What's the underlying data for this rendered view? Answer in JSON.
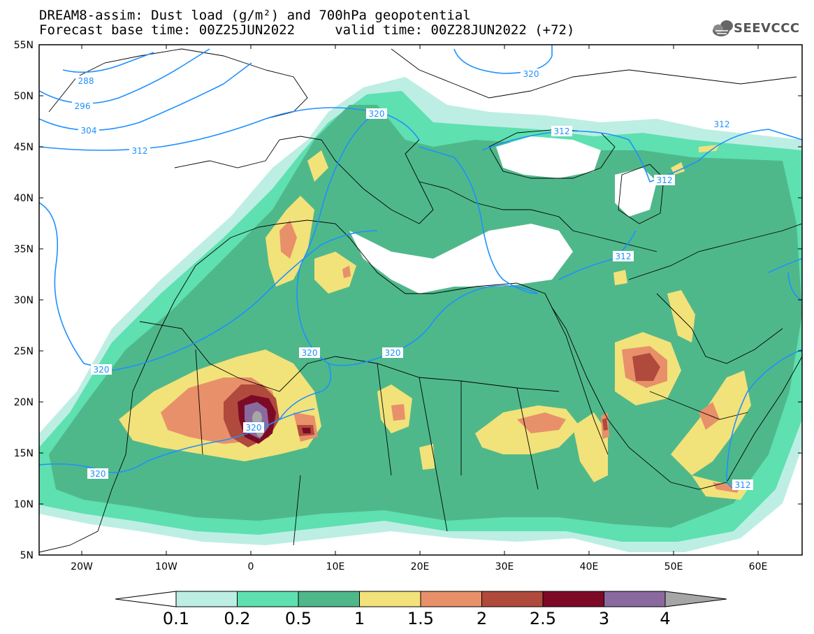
{
  "title": {
    "line1": "DREAM8-assim: Dust load (g/m²) and 700hPa geopotential",
    "line2": "Forecast base time: 00Z25JUN2022     valid time: 00Z28JUN2022 (+72)"
  },
  "logo": {
    "text": "SEEVCCC",
    "icon": "cloud-logo-icon"
  },
  "axes": {
    "lat_labels": [
      "55N",
      "50N",
      "45N",
      "40N",
      "35N",
      "30N",
      "25N",
      "20N",
      "15N",
      "10N",
      "5N"
    ],
    "lon_labels": [
      "20W",
      "10W",
      "0",
      "10E",
      "20E",
      "30E",
      "40E",
      "50E",
      "60E"
    ]
  },
  "isolines": [
    {
      "label": "288"
    },
    {
      "label": "296"
    },
    {
      "label": "304"
    },
    {
      "label": "312"
    },
    {
      "label": "320"
    },
    {
      "label": "320"
    },
    {
      "label": "312"
    },
    {
      "label": "312"
    },
    {
      "label": "312"
    },
    {
      "label": "320"
    },
    {
      "label": "320"
    },
    {
      "label": "320"
    },
    {
      "label": "320"
    },
    {
      "label": "312"
    },
    {
      "label": "320"
    },
    {
      "label": "312"
    }
  ],
  "colorbar": {
    "ticks": [
      "0.1",
      "0.2",
      "0.5",
      "1",
      "1.5",
      "2",
      "2.5",
      "3",
      "4"
    ],
    "colors": [
      "#bdeee4",
      "#5ee0b0",
      "#4fb88a",
      "#f2e27a",
      "#e8906a",
      "#b04a3c",
      "#7c0a26",
      "#8a6a9e",
      "#a6a6a6"
    ]
  },
  "colors": {
    "level_01": "#bdeee4",
    "level_02": "#5ee0b0",
    "level_05": "#4fb88a",
    "level_1": "#f2e27a",
    "level_15": "#e8906a",
    "level_2": "#b04a3c",
    "level_25": "#7c0a26",
    "level_3": "#8a6a9e",
    "isoline": "#1e90ff"
  }
}
